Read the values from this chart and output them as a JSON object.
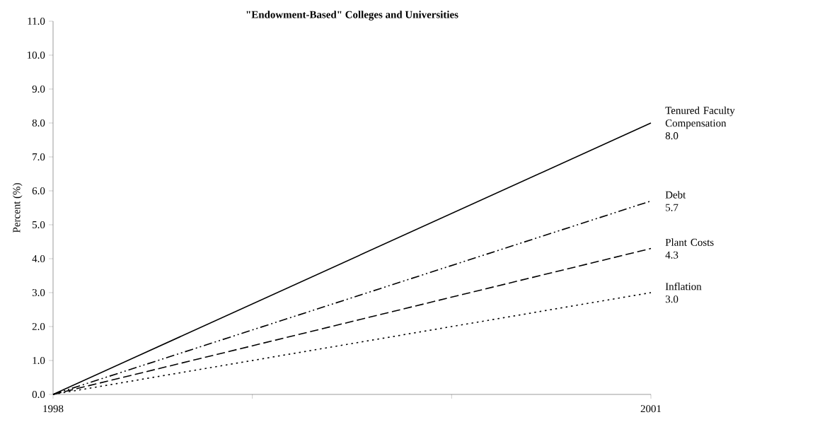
{
  "chart_data": {
    "type": "line",
    "title": "\"Endowment-Based\" Colleges and Universities",
    "ylabel": "Percent (%)",
    "xlim": [
      1998,
      2001
    ],
    "xticks": [
      1998,
      {
        "value": 1999,
        "label": null
      },
      {
        "value": 2000,
        "label": null
      },
      2001
    ],
    "ylim": [
      0,
      11
    ],
    "yticks": [
      {
        "value": 0,
        "label": "0.0"
      },
      {
        "value": 1,
        "label": "1.0"
      },
      {
        "value": 2,
        "label": "2.0"
      },
      {
        "value": 3,
        "label": "3.0"
      },
      {
        "value": 4,
        "label": "4.0"
      },
      {
        "value": 5,
        "label": "5.0"
      },
      {
        "value": 6,
        "label": "6.0"
      },
      {
        "value": 7,
        "label": "7.0"
      },
      {
        "value": 8,
        "label": "8.0"
      },
      {
        "value": 9,
        "label": "9.0"
      },
      {
        "value": 10,
        "label": "10.0"
      },
      {
        "value": 11,
        "label": "11.0"
      }
    ],
    "x": [
      1998,
      2001
    ],
    "series": [
      {
        "name": "Tenured Faculty Compensation",
        "color": "#000000",
        "line_style": "solid",
        "values": [
          0,
          8.0
        ],
        "value_labels": [
          null,
          "8.0"
        ]
      },
      {
        "name": "Debt",
        "color": "#000000",
        "line_style": "dashdotdotted",
        "values": [
          0,
          5.7
        ],
        "value_labels": [
          null,
          "5.7"
        ]
      },
      {
        "name": "Plant Costs",
        "color": "#000000",
        "line_style": "dashed",
        "values": [
          0,
          4.3
        ],
        "value_labels": [
          null,
          "4.3"
        ]
      },
      {
        "name": "Inflation",
        "color": "#000000",
        "line_style": "dotted",
        "values": [
          0,
          3.0
        ],
        "value_labels": [
          null,
          "3.0"
        ]
      }
    ]
  }
}
